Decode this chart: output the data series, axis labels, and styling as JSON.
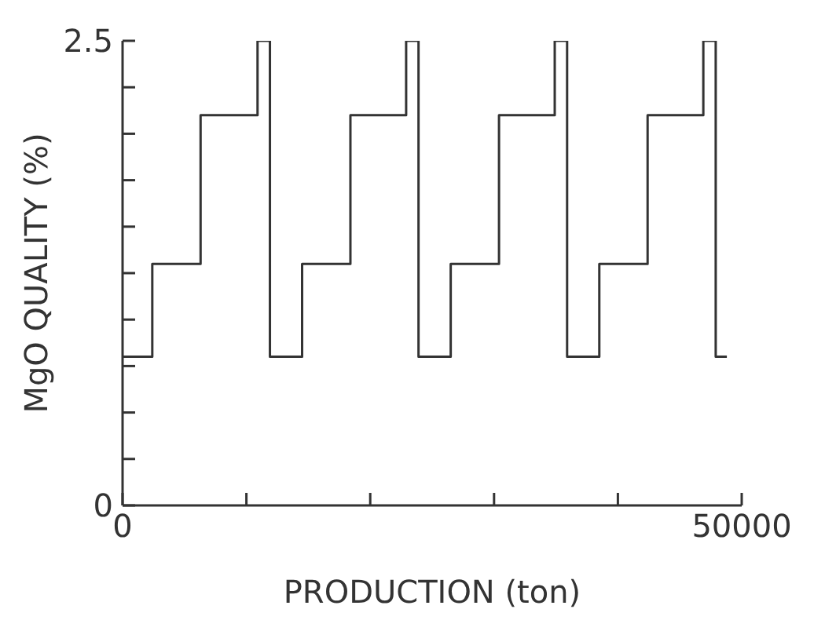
{
  "chart_data": {
    "type": "step",
    "xlabel": "PRODUCTION (ton)",
    "ylabel": "MgO QUALITY (%)",
    "x": [
      0,
      2400,
      6300,
      10900,
      11900,
      14500,
      18400,
      22900,
      23900,
      26500,
      30400,
      34900,
      35900,
      38500,
      42400,
      46900,
      47900,
      48800
    ],
    "series": [
      {
        "color": "#333333",
        "values": [
          0.8,
          1.3,
          2.1,
          2.5,
          0.8,
          1.3,
          2.1,
          2.5,
          0.8,
          1.3,
          2.1,
          2.5,
          0.8,
          1.3,
          2.1,
          2.5,
          0.8,
          0.8
        ]
      }
    ],
    "xlim": [
      0,
      50000
    ],
    "ylim": [
      0,
      2.5
    ],
    "xticks": [
      0,
      {
        "value": 10000,
        "label": null
      },
      {
        "value": 20000,
        "label": null
      },
      {
        "value": 30000,
        "label": null
      },
      {
        "value": 40000,
        "label": null
      },
      50000
    ],
    "yticks": [
      0,
      {
        "value": 0.25,
        "label": null
      },
      {
        "value": 0.5,
        "label": null
      },
      {
        "value": 0.75,
        "label": null
      },
      {
        "value": 1,
        "label": null
      },
      {
        "value": 1.25,
        "label": null
      },
      {
        "value": 1.5,
        "label": null
      },
      {
        "value": 1.75,
        "label": null
      },
      {
        "value": 2,
        "label": null
      },
      {
        "value": 2.25,
        "label": null
      },
      2.5
    ],
    "grid": false,
    "legend": false,
    "marker": "none",
    "line_style": "solid"
  }
}
